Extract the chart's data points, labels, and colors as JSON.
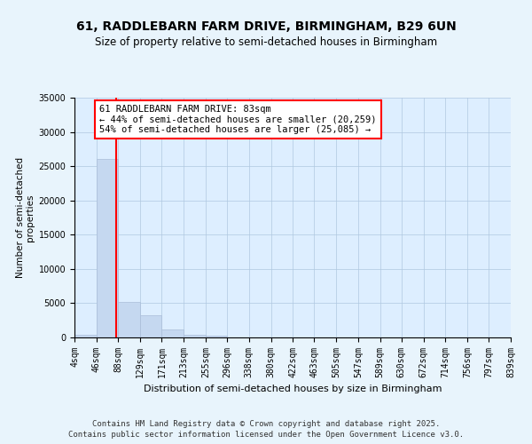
{
  "title": "61, RADDLEBARN FARM DRIVE, BIRMINGHAM, B29 6UN",
  "subtitle": "Size of property relative to semi-detached houses in Birmingham",
  "xlabel": "Distribution of semi-detached houses by size in Birmingham",
  "ylabel": "Number of semi-detached\nproperties",
  "bar_values": [
    400,
    26100,
    5200,
    3200,
    1200,
    400,
    200,
    0,
    0,
    0,
    0,
    0,
    0,
    0,
    0,
    0,
    0,
    0,
    0,
    0
  ],
  "bar_left_edges": [
    4,
    46,
    88,
    129,
    171,
    213,
    255,
    296,
    338,
    380,
    422,
    463,
    505,
    547,
    589,
    630,
    672,
    714,
    756,
    797
  ],
  "bar_widths": [
    42,
    42,
    41,
    42,
    42,
    42,
    41,
    42,
    42,
    42,
    41,
    42,
    42,
    42,
    41,
    42,
    42,
    42,
    41,
    42
  ],
  "xtick_labels": [
    "4sqm",
    "46sqm",
    "88sqm",
    "129sqm",
    "171sqm",
    "213sqm",
    "255sqm",
    "296sqm",
    "338sqm",
    "380sqm",
    "422sqm",
    "463sqm",
    "505sqm",
    "547sqm",
    "589sqm",
    "630sqm",
    "672sqm",
    "714sqm",
    "756sqm",
    "797sqm",
    "839sqm"
  ],
  "xtick_positions": [
    4,
    46,
    88,
    129,
    171,
    213,
    255,
    296,
    338,
    380,
    422,
    463,
    505,
    547,
    589,
    630,
    672,
    714,
    756,
    797,
    839
  ],
  "bar_color": "#c5d8f0",
  "bar_edge_color": "#aabdd8",
  "property_line_x": 83,
  "annotation_text_line1": "61 RADDLEBARN FARM DRIVE: 83sqm",
  "annotation_text_line2": "← 44% of semi-detached houses are smaller (20,259)",
  "annotation_text_line3": "54% of semi-detached houses are larger (25,085) →",
  "ylim": [
    0,
    35000
  ],
  "xlim": [
    4,
    839
  ],
  "yticks": [
    0,
    5000,
    10000,
    15000,
    20000,
    25000,
    30000,
    35000
  ],
  "background_color": "#e8f4fc",
  "plot_bg_color": "#ddeeff",
  "footer_line1": "Contains HM Land Registry data © Crown copyright and database right 2025.",
  "footer_line2": "Contains public sector information licensed under the Open Government Licence v3.0."
}
